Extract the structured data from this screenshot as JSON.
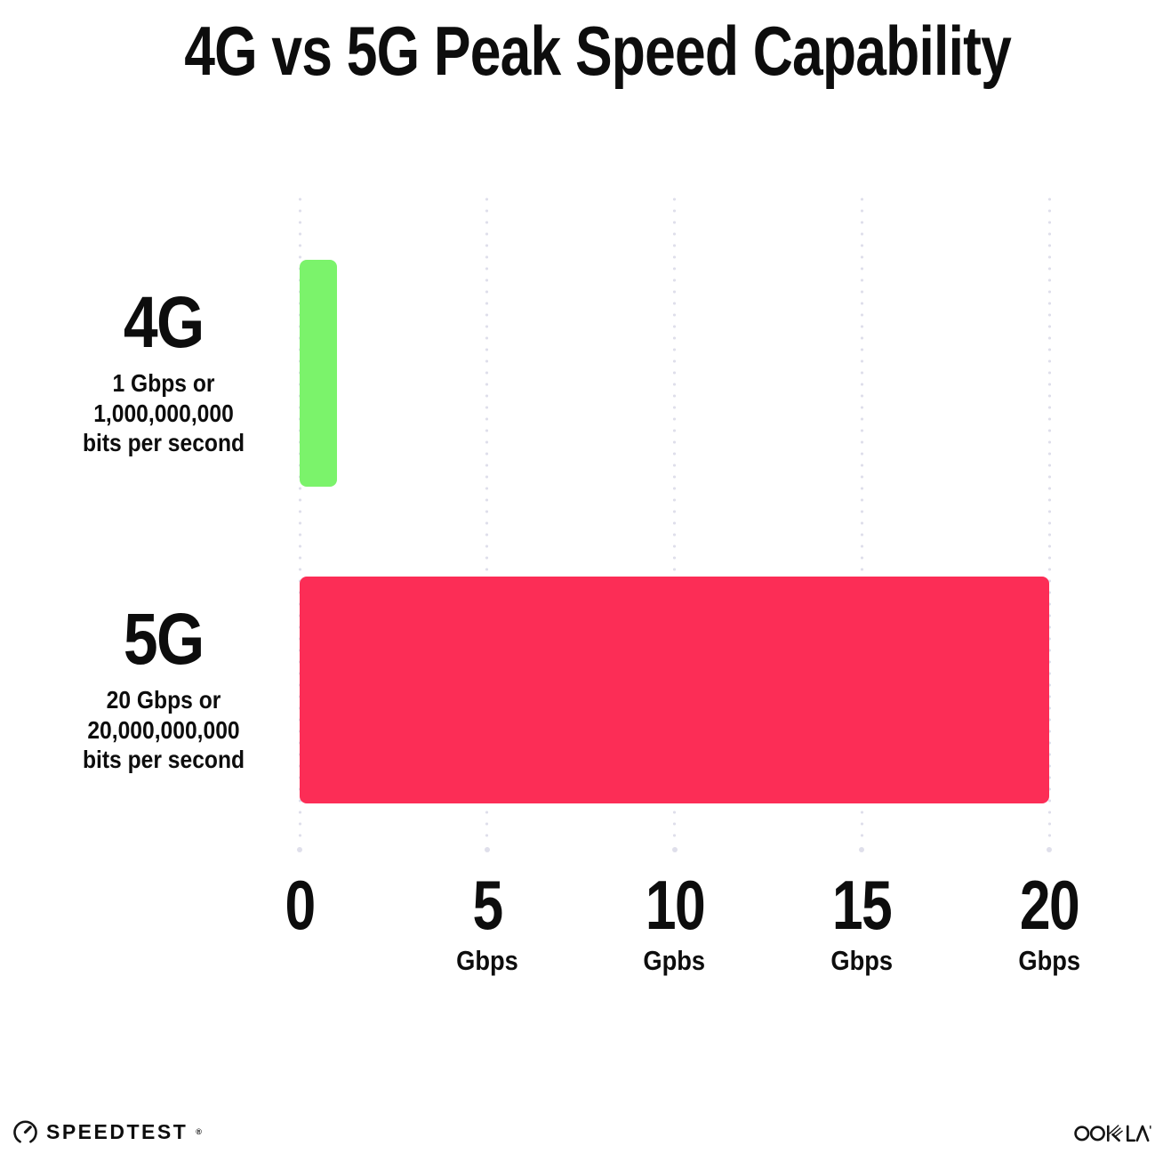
{
  "title": "4G vs 5G Peak Speed Capability",
  "colors": {
    "bar_4g": "#7bf36b",
    "bar_5g": "#fc2d56",
    "grid_dot": "#dfdfeb",
    "text": "#0d0d0d",
    "background": "#ffffff"
  },
  "chart_data": {
    "type": "bar",
    "orientation": "horizontal",
    "title": "4G vs 5G Peak Speed Capability",
    "xlabel": "Gbps",
    "xlim": [
      0,
      20
    ],
    "grid": "dotted-vertical",
    "legend": "none",
    "categories": [
      "4G",
      "5G"
    ],
    "values": [
      1,
      20
    ],
    "x_ticks": [
      {
        "value": 0,
        "label": "0",
        "unit": ""
      },
      {
        "value": 5,
        "label": "5",
        "unit": "Gbps"
      },
      {
        "value": 10,
        "label": "10",
        "unit": "Gpbs"
      },
      {
        "value": 15,
        "label": "15",
        "unit": "Gbps"
      },
      {
        "value": 20,
        "label": "20",
        "unit": "Gbps"
      }
    ],
    "rows": [
      {
        "name": "4G",
        "value": 1,
        "color": "#7bf36b",
        "description_lines": [
          "1 Gbps or",
          "1,000,000,000",
          "bits per second"
        ]
      },
      {
        "name": "5G",
        "value": 20,
        "color": "#fc2d56",
        "description_lines": [
          "20 Gbps or",
          "20,000,000,000",
          "bits per second"
        ]
      }
    ]
  },
  "footer": {
    "speedtest_label": "SPEEDTEST",
    "speedtest_trademark": "®",
    "ookla_label": "OOKLA",
    "ookla_trademark": "™"
  }
}
